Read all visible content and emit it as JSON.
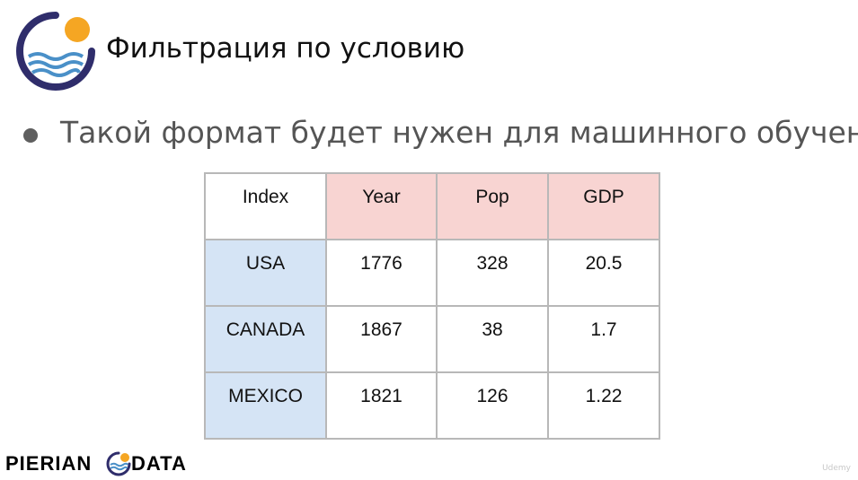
{
  "slide": {
    "title": "Фильтрация по условию",
    "bullet": "Такой формат будет нужен для машинного обучения!"
  },
  "table": {
    "corner": "Index",
    "columns": [
      "Year",
      "Pop",
      "GDP"
    ],
    "rows": [
      {
        "index": "USA",
        "values": [
          "1776",
          "328",
          "20.5"
        ]
      },
      {
        "index": "CANADA",
        "values": [
          "1867",
          "38",
          "1.7"
        ]
      },
      {
        "index": "MEXICO",
        "values": [
          "1821",
          "126",
          "1.22"
        ]
      }
    ]
  },
  "brand": {
    "left_word": "PIERIAN",
    "right_word": "DATA",
    "logo_icon": "pierian-sun-wave-icon"
  },
  "watermark": "Udemy",
  "colors": {
    "header_fill": "#f8d4d2",
    "index_fill": "#d5e4f5",
    "logo_navy": "#2f2d6b",
    "logo_orange": "#f5a623",
    "logo_blue": "#4a90c8"
  }
}
